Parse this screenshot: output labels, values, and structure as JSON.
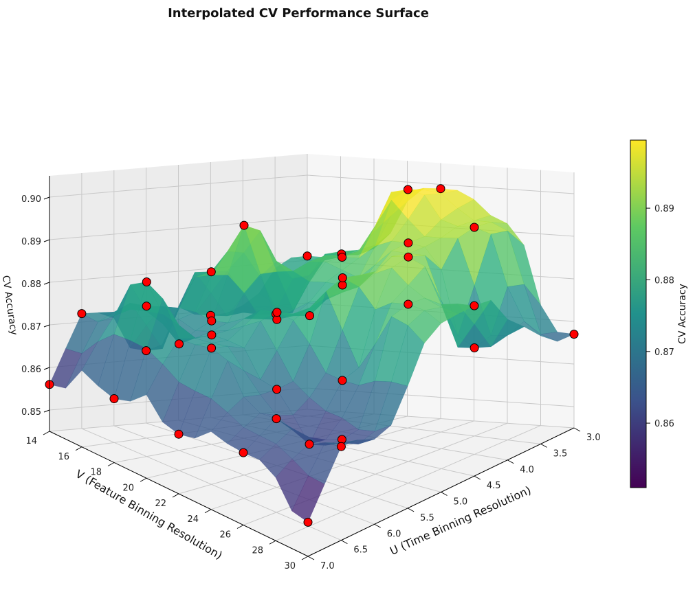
{
  "chart_data": {
    "type": "surface3d",
    "title": "Interpolated CV Performance Surface",
    "xlabel": "U (Time Binning Resolution)",
    "ylabel": "V (Feature Binning Resolution)",
    "zlabel": "CV Accuracy",
    "colorbar_label": "CV Accuracy",
    "colormap": "viridis",
    "u_range": [
      3.0,
      7.0
    ],
    "v_range": [
      14,
      30
    ],
    "z_range": [
      0.845,
      0.905
    ],
    "u_ticks": [
      "3.0",
      "3.5",
      "4.0",
      "4.5",
      "5.0",
      "5.5",
      "6.0",
      "6.5",
      "7.0"
    ],
    "v_ticks": [
      "14",
      "16",
      "18",
      "20",
      "22",
      "24",
      "26",
      "28",
      "30"
    ],
    "z_ticks": [
      "0.85",
      "0.86",
      "0.87",
      "0.88",
      "0.89",
      "0.90"
    ],
    "colorbar_ticks": [
      "0.86",
      "0.87",
      "0.88",
      "0.89"
    ],
    "colorbar_range": [
      0.851,
      0.8995
    ],
    "grid": true,
    "marker_color": "#ff0000",
    "samples": [
      {
        "u": 3.0,
        "v": 14,
        "z": 0.881
      },
      {
        "u": 3.0,
        "v": 22,
        "z": 0.899
      },
      {
        "u": 3.0,
        "v": 30,
        "z": 0.867
      },
      {
        "u": 3.5,
        "v": 18,
        "z": 0.884
      },
      {
        "u": 3.5,
        "v": 26,
        "z": 0.894
      },
      {
        "u": 4.0,
        "v": 16,
        "z": 0.87
      },
      {
        "u": 4.0,
        "v": 20,
        "z": 0.886
      },
      {
        "u": 4.0,
        "v": 24,
        "z": 0.892
      },
      {
        "u": 4.0,
        "v": 28,
        "z": 0.87
      },
      {
        "u": 4.5,
        "v": 14,
        "z": 0.869
      },
      {
        "u": 4.5,
        "v": 22,
        "z": 0.883
      },
      {
        "u": 4.5,
        "v": 30,
        "z": 0.885
      },
      {
        "u": 5.0,
        "v": 16,
        "z": 0.882
      },
      {
        "u": 5.0,
        "v": 18,
        "z": 0.895
      },
      {
        "u": 5.0,
        "v": 20,
        "z": 0.875
      },
      {
        "u": 5.0,
        "v": 24,
        "z": 0.889
      },
      {
        "u": 5.0,
        "v": 28,
        "z": 0.887
      },
      {
        "u": 5.5,
        "v": 14,
        "z": 0.862
      },
      {
        "u": 5.5,
        "v": 22,
        "z": 0.881
      },
      {
        "u": 5.5,
        "v": 26,
        "z": 0.87
      },
      {
        "u": 6.0,
        "v": 16,
        "z": 0.876
      },
      {
        "u": 6.0,
        "v": 18,
        "z": 0.87
      },
      {
        "u": 6.0,
        "v": 20,
        "z": 0.875
      },
      {
        "u": 6.0,
        "v": 24,
        "z": 0.868
      },
      {
        "u": 6.0,
        "v": 28,
        "z": 0.862
      },
      {
        "u": 6.5,
        "v": 18,
        "z": 0.886
      },
      {
        "u": 6.5,
        "v": 22,
        "z": 0.877
      },
      {
        "u": 6.5,
        "v": 26,
        "z": 0.867
      },
      {
        "u": 6.5,
        "v": 30,
        "z": 0.867
      },
      {
        "u": 7.0,
        "v": 14,
        "z": 0.856
      },
      {
        "u": 7.0,
        "v": 18,
        "z": 0.86
      },
      {
        "u": 7.0,
        "v": 22,
        "z": 0.859
      },
      {
        "u": 7.0,
        "v": 26,
        "z": 0.862
      },
      {
        "u": 7.0,
        "v": 30,
        "z": 0.853
      },
      {
        "u": 3.5,
        "v": 22,
        "z": 0.901
      },
      {
        "u": 5.5,
        "v": 18,
        "z": 0.874
      },
      {
        "u": 6.0,
        "v": 26,
        "z": 0.858
      },
      {
        "u": 4.5,
        "v": 26,
        "z": 0.893
      },
      {
        "u": 5.0,
        "v": 22,
        "z": 0.878
      },
      {
        "u": 6.5,
        "v": 14,
        "z": 0.872
      }
    ]
  }
}
